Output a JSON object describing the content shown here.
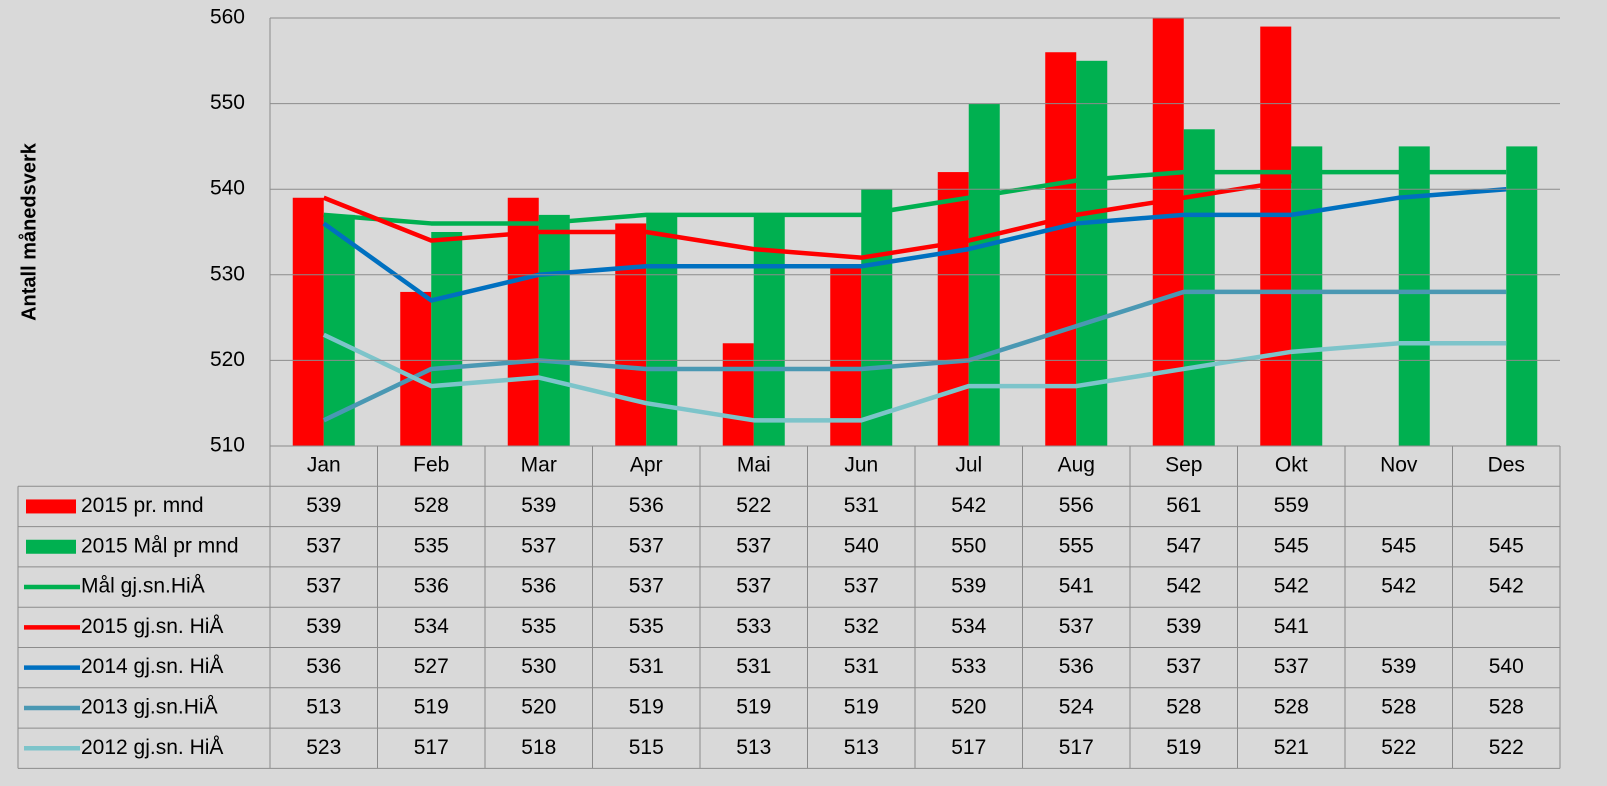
{
  "chart_data": {
    "type": "bar",
    "ylabel": "Antall månedsverk",
    "categories": [
      "Jan",
      "Feb",
      "Mar",
      "Apr",
      "Mai",
      "Jun",
      "Jul",
      "Aug",
      "Sep",
      "Okt",
      "Nov",
      "Des"
    ],
    "ylim": [
      510,
      560
    ],
    "yticks": [
      510,
      520,
      530,
      540,
      550,
      560
    ],
    "grid": true,
    "data_table": true,
    "series": [
      {
        "name": "2015 pr. mnd",
        "type": "bar",
        "color": "#ff0000",
        "values": [
          539,
          528,
          539,
          536,
          522,
          531,
          542,
          556,
          561,
          559,
          null,
          null
        ]
      },
      {
        "name": "2015 Mål pr mnd",
        "type": "bar",
        "color": "#00b050",
        "values": [
          537,
          535,
          537,
          537,
          537,
          540,
          550,
          555,
          547,
          545,
          545,
          545
        ]
      },
      {
        "name": "Mål gj.sn.HiÅ",
        "type": "line",
        "color": "#00b050",
        "values": [
          537,
          536,
          536,
          537,
          537,
          537,
          539,
          541,
          542,
          542,
          542,
          542
        ]
      },
      {
        "name": "2015 gj.sn. HiÅ",
        "type": "line",
        "color": "#ff0000",
        "values": [
          539,
          534,
          535,
          535,
          533,
          532,
          534,
          537,
          539,
          541,
          null,
          null
        ]
      },
      {
        "name": "2014 gj.sn. HiÅ",
        "type": "line",
        "color": "#0070c0",
        "values": [
          536,
          527,
          530,
          531,
          531,
          531,
          533,
          536,
          537,
          537,
          539,
          540
        ]
      },
      {
        "name": "2013 gj.sn.HiÅ",
        "type": "line",
        "color": "#4a98b3",
        "values": [
          513,
          519,
          520,
          519,
          519,
          519,
          520,
          524,
          528,
          528,
          528,
          528
        ]
      },
      {
        "name": "2012 gj.sn. HiÅ",
        "type": "line",
        "color": "#7dc4ca",
        "values": [
          523,
          517,
          518,
          515,
          513,
          513,
          517,
          517,
          519,
          521,
          522,
          522
        ]
      }
    ]
  }
}
